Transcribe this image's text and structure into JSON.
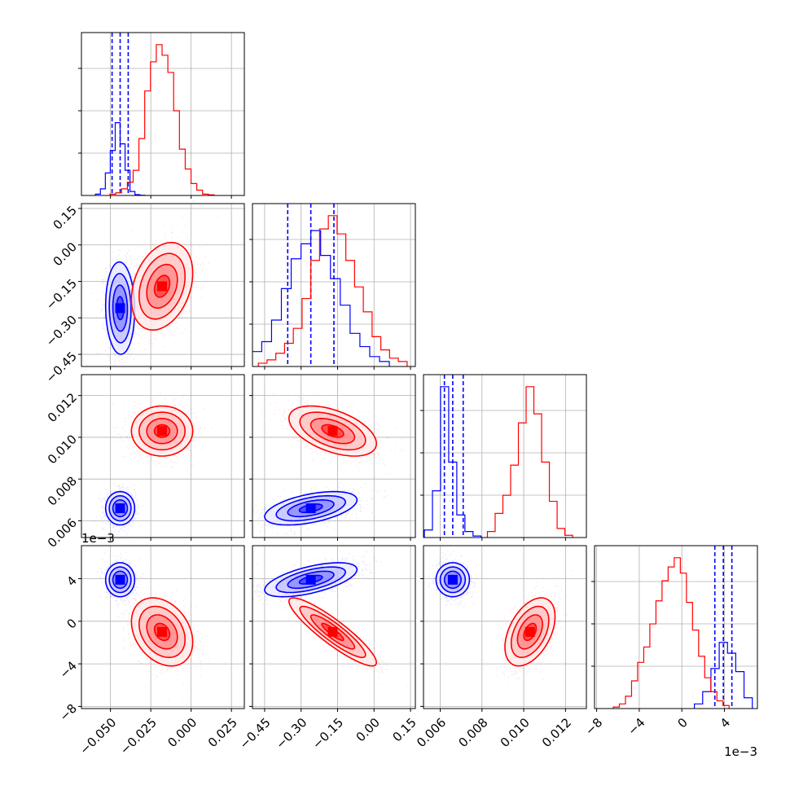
{
  "chart_data": {
    "type": "corner",
    "grid": true,
    "colors": {
      "blue": "#0000ff",
      "red": "#ff0000"
    },
    "parameters": [
      {
        "name": "",
        "range": [
          -0.068,
          0.033
        ],
        "ticks": [
          -0.05,
          -0.025,
          0.0,
          0.025
        ],
        "tick_labels": [
          "−0.050",
          "−0.025",
          "0.000",
          "0.025"
        ]
      },
      {
        "name": "",
        "range": [
          -0.5,
          0.17
        ],
        "ticks": [
          -0.45,
          -0.3,
          -0.15,
          0.0,
          0.15
        ],
        "tick_labels": [
          "−0.45",
          "−0.30",
          "−0.15",
          "0.00",
          "0.15"
        ]
      },
      {
        "name": "",
        "range": [
          0.0052,
          0.013
        ],
        "ticks": [
          0.006,
          0.008,
          0.01,
          0.012
        ],
        "tick_labels": [
          "0.006",
          "0.008",
          "0.010",
          "0.012"
        ]
      },
      {
        "name": "",
        "range": [
          -0.0082,
          0.0071
        ],
        "ticks": [
          -0.008,
          -0.004,
          0.0,
          0.004
        ],
        "tick_labels": [
          "−8",
          "−4",
          "0",
          "4"
        ],
        "offset_text": "1e−3"
      }
    ],
    "series": [
      {
        "name": "",
        "color": "#0000ff",
        "mean": [
          -0.044,
          -0.26,
          0.0066,
          0.0039
        ],
        "std": [
          0.0045,
          0.095,
          0.0004,
          0.0008
        ],
        "corr": [
          [
            1,
            -0.05,
            0.0,
            0.0
          ],
          [
            -0.05,
            1,
            0.5,
            0.6
          ],
          [
            0.0,
            0.5,
            1,
            0.0
          ],
          [
            0.0,
            0.6,
            0.0,
            1
          ]
        ],
        "quantiles": [
          [
            -0.049,
            -0.044,
            -0.039
          ],
          [
            -0.355,
            -0.26,
            -0.165
          ],
          [
            0.0062,
            0.0066,
            0.0071
          ],
          [
            0.0031,
            0.0039,
            0.0047
          ]
        ],
        "hist_counts": [
          [
            1,
            5,
            17,
            34,
            55,
            39,
            19,
            3,
            0.6,
            0.2
          ],
          [
            2,
            6,
            9,
            15,
            28,
            47,
            65,
            74,
            82,
            67,
            53,
            37,
            20,
            12,
            6,
            3
          ],
          [
            5,
            31,
            100,
            50,
            15,
            4,
            1
          ],
          [
            3,
            11,
            26,
            43,
            36,
            24,
            7
          ]
        ]
      },
      {
        "name": "",
        "color": "#ff0000",
        "mean": [
          -0.018,
          -0.17,
          0.0103,
          -0.001
        ],
        "std": [
          0.0095,
          0.09,
          0.0006,
          0.0016
        ],
        "corr": [
          [
            1,
            0.3,
            0.0,
            -0.3
          ],
          [
            0.3,
            1,
            -0.5,
            -0.9
          ],
          [
            0.0,
            -0.5,
            1,
            0.45
          ],
          [
            -0.3,
            -0.9,
            0.45,
            1
          ]
        ],
        "quantiles": [],
        "hist_counts": [
          [
            1,
            2,
            5,
            10,
            19,
            43,
            79,
            101,
            114,
            106,
            93,
            64,
            35,
            20,
            9,
            4,
            1,
            0.5
          ],
          [
            2,
            4,
            8,
            14,
            23,
            41,
            64,
            83,
            91,
            80,
            64,
            48,
            33,
            18,
            10,
            5,
            3
          ],
          [
            4,
            16,
            28,
            48,
            76,
            100,
            82,
            50,
            24,
            6,
            1.5
          ],
          [
            1,
            3,
            8,
            18,
            30,
            40,
            55,
            70,
            83,
            92,
            98,
            88,
            69,
            51,
            34,
            20,
            11,
            5,
            2
          ]
        ]
      }
    ]
  }
}
